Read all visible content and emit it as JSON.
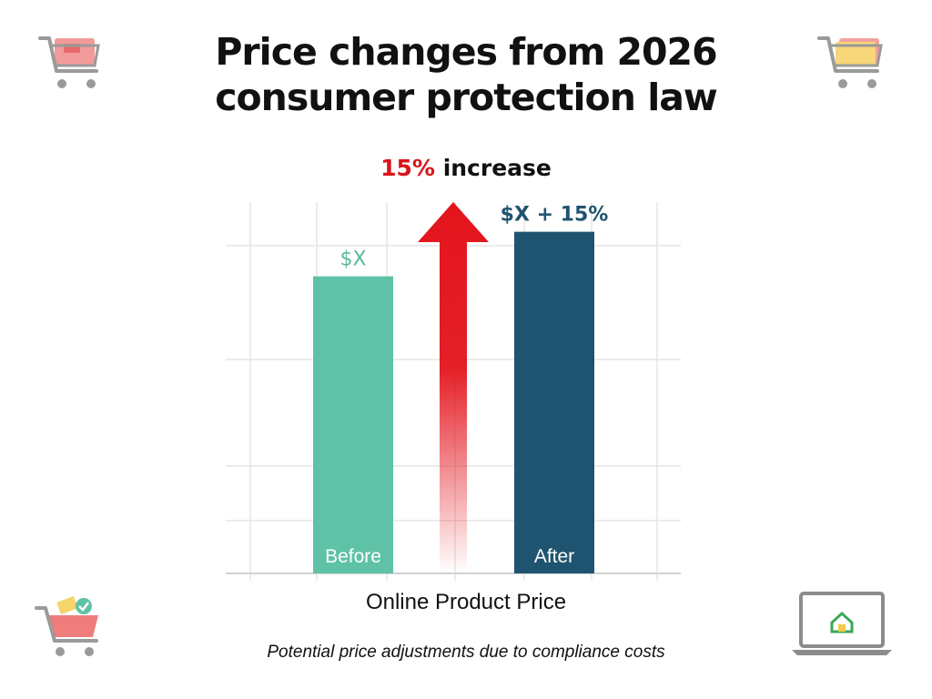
{
  "title": {
    "line1": "Price changes from 2026",
    "line2": "consumer protection law"
  },
  "annotation": {
    "percent": "15%",
    "word": "increase"
  },
  "note": "Potential price adjustments due to compliance costs",
  "icons": {
    "top_left": "shopping-cart-icon",
    "top_right": "shopping-cart-icon",
    "bottom_left": "shopping-basket-icon",
    "bottom_right": "laptop-icon"
  },
  "colors": {
    "before": "#5fc2a6",
    "after": "#1f5470",
    "arrow": "#e3141c",
    "before_label": "#5aba98",
    "after_label": "#1f5470"
  },
  "chart_data": {
    "type": "bar",
    "title": "Price changes from 2026 consumer protection law",
    "xlabel": "Online Product Price",
    "ylabel": "",
    "categories": [
      "Before",
      "After"
    ],
    "values": [
      100,
      115
    ],
    "value_labels": [
      "$X",
      "$X + 15%"
    ],
    "ylim": [
      0,
      125
    ],
    "grid": true,
    "legend": "none",
    "annotation": "15% increase"
  }
}
